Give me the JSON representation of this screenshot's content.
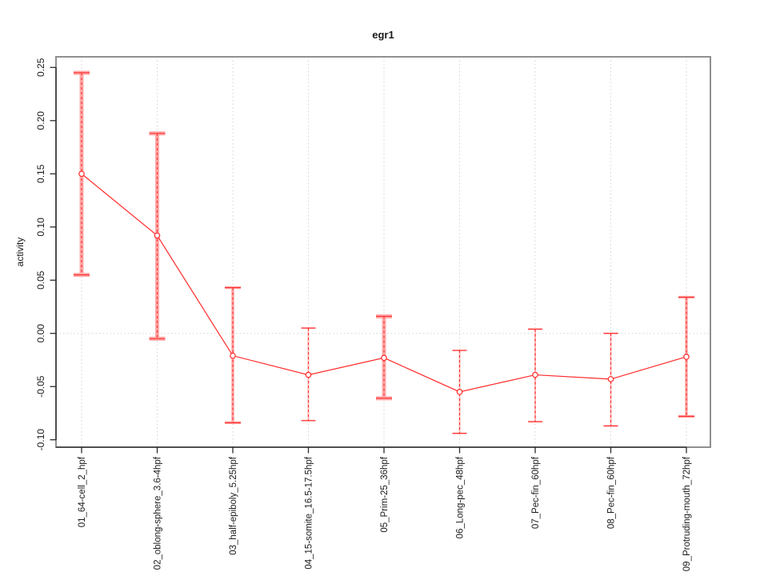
{
  "chart_data": {
    "type": "line",
    "title": "egr1",
    "xlabel": "",
    "ylabel": "activity",
    "categories": [
      "01_64-cell_2_hpf",
      "02_oblong-sphere_3.6-4hpf",
      "03_half-epiboly_5.25hpf",
      "04_15-somite_16.5-17.5hpf",
      "05_Prim-25_36hpf",
      "06_Long-pec_48hpf",
      "07_Pec-fin_60hpf",
      "08_Pec-fin_60hpf",
      "09_Protruding-mouth_72hpf"
    ],
    "series": [
      {
        "name": "egr1",
        "values": [
          0.15,
          0.092,
          -0.021,
          -0.039,
          -0.023,
          -0.055,
          -0.039,
          -0.043,
          -0.022
        ],
        "err_high": [
          0.245,
          0.188,
          0.043,
          0.005,
          0.016,
          -0.016,
          0.004,
          0.0,
          0.034
        ],
        "err_low": [
          0.055,
          -0.005,
          -0.084,
          -0.082,
          -0.061,
          -0.094,
          -0.083,
          -0.087,
          -0.078
        ],
        "bar_weight": [
          "heavy",
          "heavy",
          "medium",
          "light",
          "heavy",
          "light",
          "light",
          "light",
          "medium"
        ]
      }
    ],
    "ylim": [
      -0.107,
      0.26
    ],
    "yticks": [
      {
        "v": -0.1,
        "label": "-0.10"
      },
      {
        "v": -0.05,
        "label": "-0.05"
      },
      {
        "v": 0.0,
        "label": "0.00"
      },
      {
        "v": 0.05,
        "label": "0.05"
      },
      {
        "v": 0.1,
        "label": "0.10"
      },
      {
        "v": 0.15,
        "label": "0.15"
      },
      {
        "v": 0.2,
        "label": "0.20"
      },
      {
        "v": 0.25,
        "label": "0.25"
      }
    ],
    "zero_line": 0.0,
    "grid": "dotted vertical gridline at each category; dotted horizontal line at zero",
    "legend": "none",
    "marker": "open-circle",
    "colors": {
      "series": "#ff2a2a",
      "band_heavy": "#ffa8a8",
      "band_light": "#ffbcbc",
      "grid": "#d4d4d4",
      "box": "#909090",
      "axis": "#2b2b2b",
      "text": "#1a1a1a",
      "background": "#ffffff"
    }
  }
}
